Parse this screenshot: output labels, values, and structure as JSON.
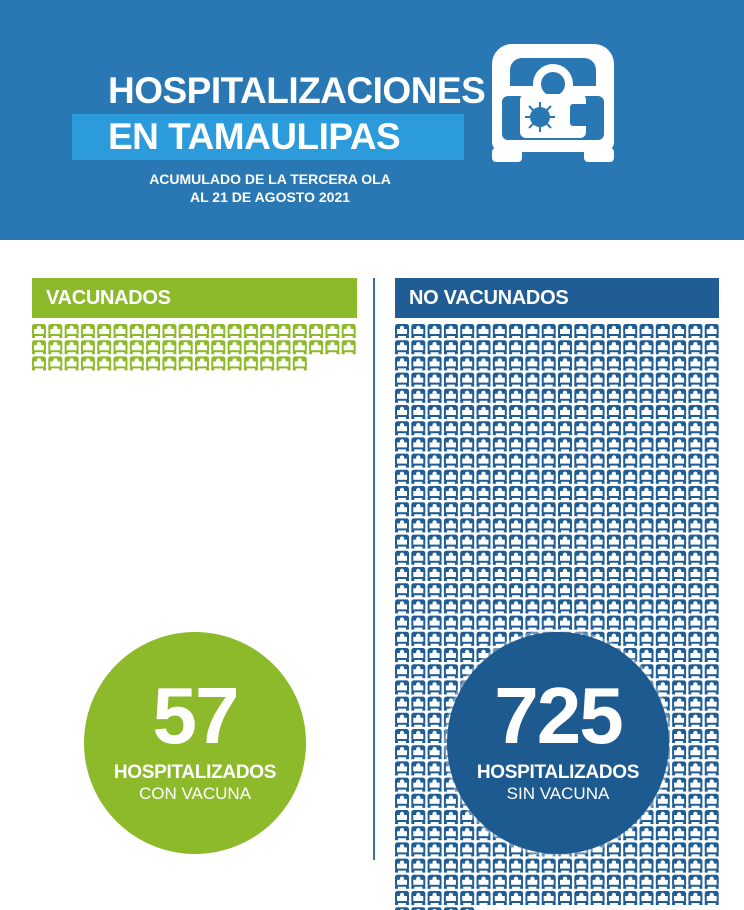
{
  "header": {
    "title_line1": "HOSPITALIZACIONES",
    "title_line2": "EN TAMAULIPAS",
    "subtitle_line1": "ACUMULADO DE LA TERCERA OLA",
    "subtitle_line2": "AL 21 DE AGOSTO 2021",
    "icon": "hospital-bed-virus-icon"
  },
  "vaccinated": {
    "heading": "VACUNADOS",
    "count": "57",
    "label_line1": "HOSPITALIZADOS",
    "label_line2": "CON VACUNA",
    "icon": "bed-icon",
    "icon_count": 57,
    "color": "#8dba2a"
  },
  "unvaccinated": {
    "heading": "NO VACUNADOS",
    "count": "725",
    "label_line1": "HOSPITALIZADOS",
    "label_line2": "SIN VACUNA",
    "icon": "bed-icon",
    "icon_count": 725,
    "color": "#1f5d94"
  },
  "colors": {
    "header_bg": "#2a78b3",
    "title_bar": "#2b9bdc",
    "green": "#8dba2a",
    "blue": "#1f5d94"
  }
}
